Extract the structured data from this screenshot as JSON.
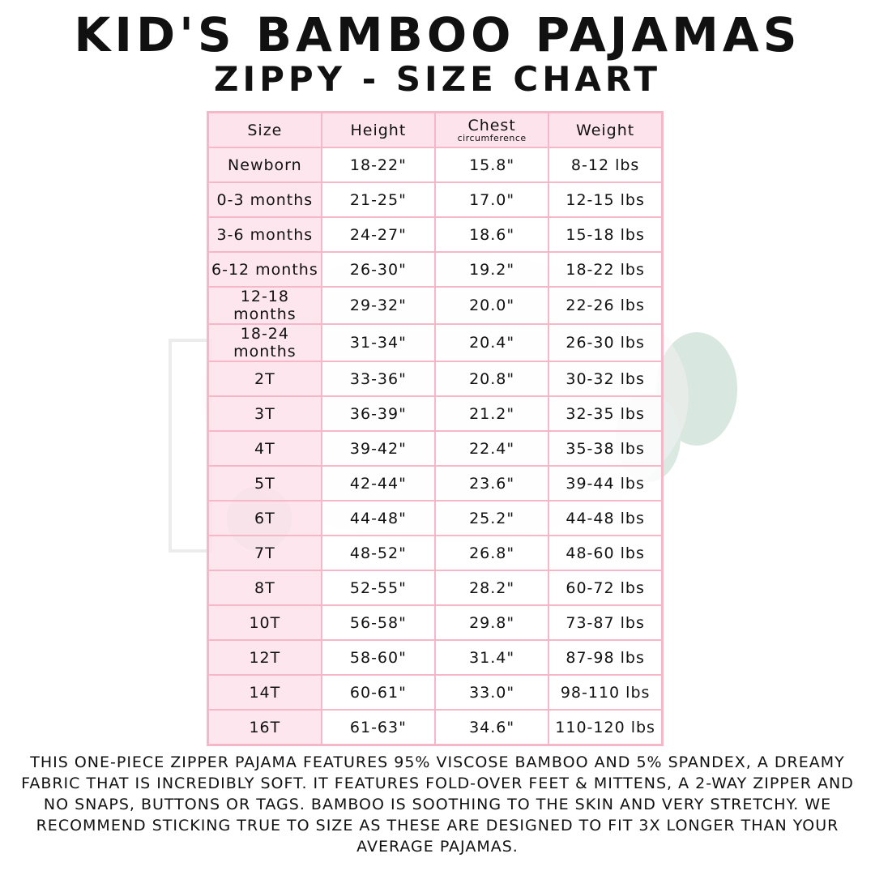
{
  "title": "KID'S BAMBOO PAJAMAS",
  "subtitle": "ZIPPY - SIZE CHART",
  "table": {
    "headers": {
      "size": "Size",
      "height": "Height",
      "chest": "Chest",
      "chest_sub": "circumference",
      "weight": "Weight"
    },
    "rows": [
      [
        "Newborn",
        "18-22\"",
        "15.8\"",
        "8-12 lbs"
      ],
      [
        "0-3 months",
        "21-25\"",
        "17.0\"",
        "12-15 lbs"
      ],
      [
        "3-6 months",
        "24-27\"",
        "18.6\"",
        "15-18 lbs"
      ],
      [
        "6-12 months",
        "26-30\"",
        "19.2\"",
        "18-22 lbs"
      ],
      [
        "12-18 months",
        "29-32\"",
        "20.0\"",
        "22-26 lbs"
      ],
      [
        "18-24 months",
        "31-34\"",
        "20.4\"",
        "26-30 lbs"
      ],
      [
        "2T",
        "33-36\"",
        "20.8\"",
        "30-32 lbs"
      ],
      [
        "3T",
        "36-39\"",
        "21.2\"",
        "32-35 lbs"
      ],
      [
        "4T",
        "39-42\"",
        "22.4\"",
        "35-38 lbs"
      ],
      [
        "5T",
        "42-44\"",
        "23.6\"",
        "39-44 lbs"
      ],
      [
        "6T",
        "44-48\"",
        "25.2\"",
        "44-48 lbs"
      ],
      [
        "7T",
        "48-52\"",
        "26.8\"",
        "48-60 lbs"
      ],
      [
        "8T",
        "52-55\"",
        "28.2\"",
        "60-72 lbs"
      ],
      [
        "10T",
        "56-58\"",
        "29.8\"",
        "73-87 lbs"
      ],
      [
        "12T",
        "58-60\"",
        "31.4\"",
        "87-98 lbs"
      ],
      [
        "14T",
        "60-61\"",
        "33.0\"",
        "98-110 lbs"
      ],
      [
        "16T",
        "61-63\"",
        "34.6\"",
        "110-120 lbs"
      ]
    ]
  },
  "description": "This one-piece zipper pajama features 95% viscose bamboo and 5% spandex, a dreamy fabric that is incredibly soft. It features fold-over feet & mittens, a 2-way zipper and no snaps, buttons or tags. Bamboo is soothing to the skin and very stretchy. We recommend sticking true to size as these are designed to fit 3x longer than your average pajamas.",
  "colors": {
    "border": "#f5b8c8",
    "header_fill": "#fde2ea"
  }
}
